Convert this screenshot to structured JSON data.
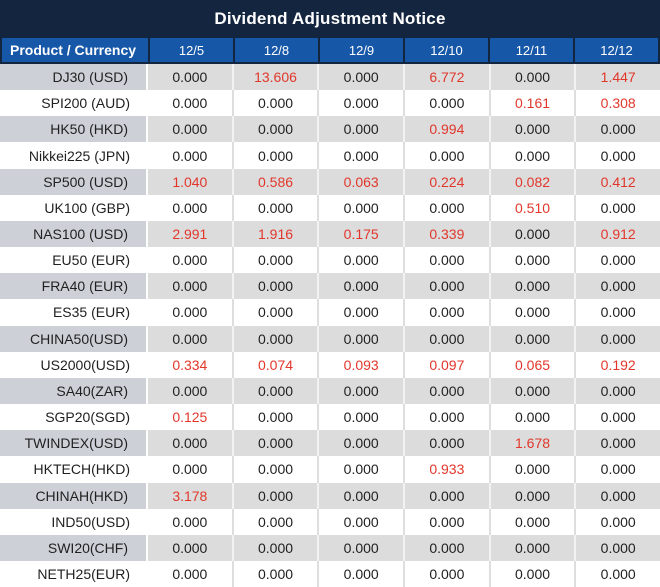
{
  "title": "Dividend Adjustment Notice",
  "colors": {
    "title_bar_navy": "#13253f",
    "header_blue": "#1657a8",
    "negative_red": "#e1372b",
    "gray_row_value_bg": "#dcdcdc",
    "gray_row_product_bg": "#cdd1d7",
    "text_black": "#1f1f1f",
    "header_text": "#ffffff"
  },
  "table": {
    "header": {
      "product_label": "Product / Currency",
      "dates": [
        "12/5",
        "12/8",
        "12/9",
        "12/10",
        "12/11",
        "12/12"
      ]
    },
    "rows": [
      {
        "product": "DJ30 (USD)",
        "cells": [
          {
            "t": "0.000",
            "red": false
          },
          {
            "t": "13.606",
            "red": true
          },
          {
            "t": "0.000",
            "red": false
          },
          {
            "t": "6.772",
            "red": true
          },
          {
            "t": "0.000",
            "red": false
          },
          {
            "t": "1.447",
            "red": true
          }
        ]
      },
      {
        "product": "SPI200 (AUD)",
        "cells": [
          {
            "t": "0.000",
            "red": false
          },
          {
            "t": "0.000",
            "red": false
          },
          {
            "t": "0.000",
            "red": false
          },
          {
            "t": "0.000",
            "red": false
          },
          {
            "t": "0.161",
            "red": true
          },
          {
            "t": "0.308",
            "red": true
          }
        ]
      },
      {
        "product": "HK50 (HKD)",
        "cells": [
          {
            "t": "0.000",
            "red": false
          },
          {
            "t": "0.000",
            "red": false
          },
          {
            "t": "0.000",
            "red": false
          },
          {
            "t": "0.994",
            "red": true
          },
          {
            "t": "0.000",
            "red": false
          },
          {
            "t": "0.000",
            "red": false
          }
        ]
      },
      {
        "product": "Nikkei225 (JPN)",
        "cells": [
          {
            "t": "0.000",
            "red": false
          },
          {
            "t": "0.000",
            "red": false
          },
          {
            "t": "0.000",
            "red": false
          },
          {
            "t": "0.000",
            "red": false
          },
          {
            "t": "0.000",
            "red": false
          },
          {
            "t": "0.000",
            "red": false
          }
        ]
      },
      {
        "product": "SP500 (USD)",
        "cells": [
          {
            "t": "1.040",
            "red": true
          },
          {
            "t": "0.586",
            "red": true
          },
          {
            "t": "0.063",
            "red": true
          },
          {
            "t": "0.224",
            "red": true
          },
          {
            "t": "0.082",
            "red": true
          },
          {
            "t": "0.412",
            "red": true
          }
        ]
      },
      {
        "product": "UK100 (GBP)",
        "cells": [
          {
            "t": "0.000",
            "red": false
          },
          {
            "t": "0.000",
            "red": false
          },
          {
            "t": "0.000",
            "red": false
          },
          {
            "t": "0.000",
            "red": false
          },
          {
            "t": "0.510",
            "red": true
          },
          {
            "t": "0.000",
            "red": false
          }
        ]
      },
      {
        "product": "NAS100 (USD)",
        "cells": [
          {
            "t": "2.991",
            "red": true
          },
          {
            "t": "1.916",
            "red": true
          },
          {
            "t": "0.175",
            "red": true
          },
          {
            "t": "0.339",
            "red": true
          },
          {
            "t": "0.000",
            "red": false
          },
          {
            "t": "0.912",
            "red": true
          }
        ]
      },
      {
        "product": "EU50 (EUR)",
        "cells": [
          {
            "t": "0.000",
            "red": false
          },
          {
            "t": "0.000",
            "red": false
          },
          {
            "t": "0.000",
            "red": false
          },
          {
            "t": "0.000",
            "red": false
          },
          {
            "t": "0.000",
            "red": false
          },
          {
            "t": "0.000",
            "red": false
          }
        ]
      },
      {
        "product": "FRA40 (EUR)",
        "cells": [
          {
            "t": "0.000",
            "red": false
          },
          {
            "t": "0.000",
            "red": false
          },
          {
            "t": "0.000",
            "red": false
          },
          {
            "t": "0.000",
            "red": false
          },
          {
            "t": "0.000",
            "red": false
          },
          {
            "t": "0.000",
            "red": false
          }
        ]
      },
      {
        "product": "ES35 (EUR)",
        "cells": [
          {
            "t": "0.000",
            "red": false
          },
          {
            "t": "0.000",
            "red": false
          },
          {
            "t": "0.000",
            "red": false
          },
          {
            "t": "0.000",
            "red": false
          },
          {
            "t": "0.000",
            "red": false
          },
          {
            "t": "0.000",
            "red": false
          }
        ]
      },
      {
        "product": "CHINA50(USD)",
        "cells": [
          {
            "t": "0.000",
            "red": false
          },
          {
            "t": "0.000",
            "red": false
          },
          {
            "t": "0.000",
            "red": false
          },
          {
            "t": "0.000",
            "red": false
          },
          {
            "t": "0.000",
            "red": false
          },
          {
            "t": "0.000",
            "red": false
          }
        ]
      },
      {
        "product": "US2000(USD)",
        "cells": [
          {
            "t": "0.334",
            "red": true
          },
          {
            "t": "0.074",
            "red": true
          },
          {
            "t": "0.093",
            "red": true
          },
          {
            "t": "0.097",
            "red": true
          },
          {
            "t": "0.065",
            "red": true
          },
          {
            "t": "0.192",
            "red": true
          }
        ]
      },
      {
        "product": "SA40(ZAR)",
        "cells": [
          {
            "t": "0.000",
            "red": false
          },
          {
            "t": "0.000",
            "red": false
          },
          {
            "t": "0.000",
            "red": false
          },
          {
            "t": "0.000",
            "red": false
          },
          {
            "t": "0.000",
            "red": false
          },
          {
            "t": "0.000",
            "red": false
          }
        ]
      },
      {
        "product": "SGP20(SGD)",
        "cells": [
          {
            "t": "0.125",
            "red": true
          },
          {
            "t": "0.000",
            "red": false
          },
          {
            "t": "0.000",
            "red": false
          },
          {
            "t": "0.000",
            "red": false
          },
          {
            "t": "0.000",
            "red": false
          },
          {
            "t": "0.000",
            "red": false
          }
        ]
      },
      {
        "product": "TWINDEX(USD)",
        "cells": [
          {
            "t": "0.000",
            "red": false
          },
          {
            "t": "0.000",
            "red": false
          },
          {
            "t": "0.000",
            "red": false
          },
          {
            "t": "0.000",
            "red": false
          },
          {
            "t": "1.678",
            "red": true
          },
          {
            "t": "0.000",
            "red": false
          }
        ]
      },
      {
        "product": "HKTECH(HKD)",
        "cells": [
          {
            "t": "0.000",
            "red": false
          },
          {
            "t": "0.000",
            "red": false
          },
          {
            "t": "0.000",
            "red": false
          },
          {
            "t": "0.933",
            "red": true
          },
          {
            "t": "0.000",
            "red": false
          },
          {
            "t": "0.000",
            "red": false
          }
        ]
      },
      {
        "product": "CHINAH(HKD)",
        "cells": [
          {
            "t": "3.178",
            "red": true
          },
          {
            "t": "0.000",
            "red": false
          },
          {
            "t": "0.000",
            "red": false
          },
          {
            "t": "0.000",
            "red": false
          },
          {
            "t": "0.000",
            "red": false
          },
          {
            "t": "0.000",
            "red": false
          }
        ]
      },
      {
        "product": "IND50(USD)",
        "cells": [
          {
            "t": "0.000",
            "red": false
          },
          {
            "t": "0.000",
            "red": false
          },
          {
            "t": "0.000",
            "red": false
          },
          {
            "t": "0.000",
            "red": false
          },
          {
            "t": "0.000",
            "red": false
          },
          {
            "t": "0.000",
            "red": false
          }
        ]
      },
      {
        "product": "SWI20(CHF)",
        "cells": [
          {
            "t": "0.000",
            "red": false
          },
          {
            "t": "0.000",
            "red": false
          },
          {
            "t": "0.000",
            "red": false
          },
          {
            "t": "0.000",
            "red": false
          },
          {
            "t": "0.000",
            "red": false
          },
          {
            "t": "0.000",
            "red": false
          }
        ]
      },
      {
        "product": "NETH25(EUR)",
        "cells": [
          {
            "t": "0.000",
            "red": false
          },
          {
            "t": "0.000",
            "red": false
          },
          {
            "t": "0.000",
            "red": false
          },
          {
            "t": "0.000",
            "red": false
          },
          {
            "t": "0.000",
            "red": false
          },
          {
            "t": "0.000",
            "red": false
          }
        ]
      }
    ]
  }
}
